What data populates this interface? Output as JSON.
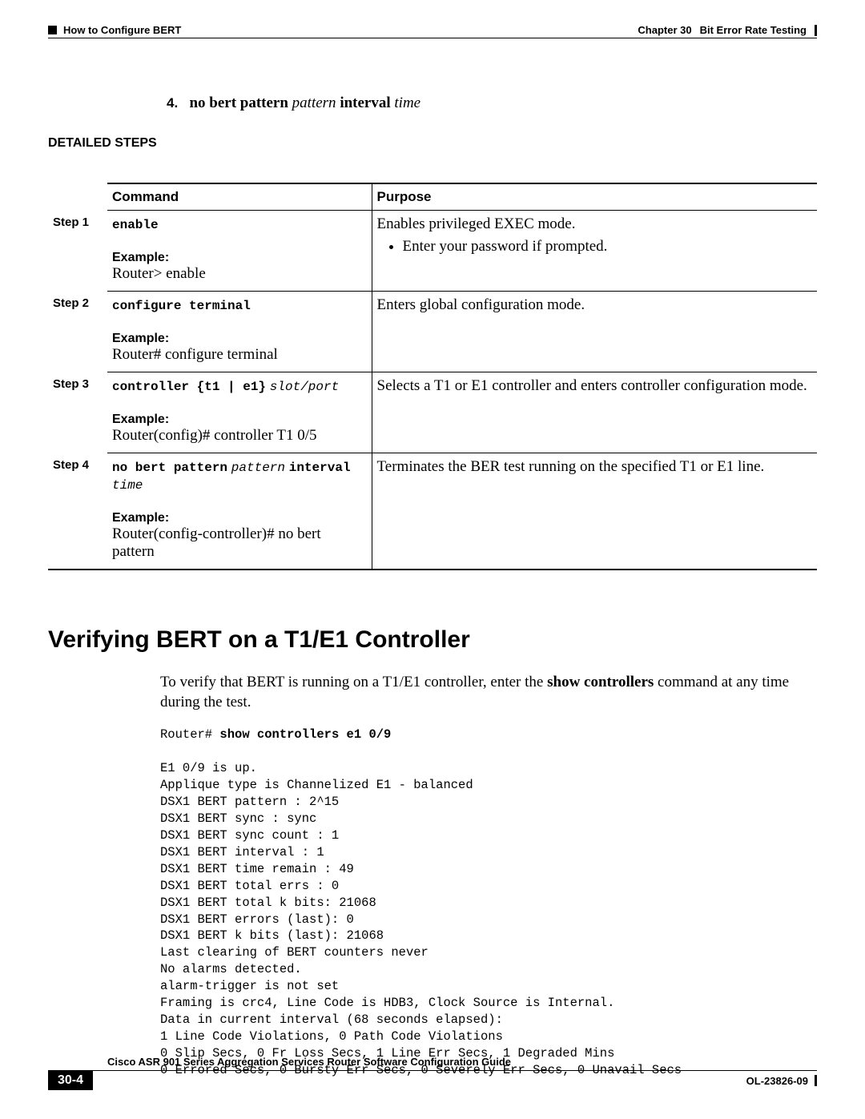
{
  "header": {
    "left": "How to Configure BERT",
    "chapter_label": "Chapter 30",
    "chapter_title": "Bit Error Rate Testing"
  },
  "preStep": {
    "number": "4.",
    "p1": "no bert pattern",
    "p2": "pattern",
    "p3": "interval",
    "p4": "time"
  },
  "detailedSteps": "Detailed Steps",
  "table": {
    "headers": {
      "command": "Command",
      "purpose": "Purpose"
    },
    "rows": [
      {
        "step": "Step 1",
        "cmd_mono": "enable",
        "example_label": "Example:",
        "example_text": "Router> enable",
        "purpose_main": "Enables privileged EXEC mode.",
        "purpose_bullet": "Enter your password if prompted."
      },
      {
        "step": "Step 2",
        "cmd_mono": "configure terminal",
        "example_label": "Example:",
        "example_text": "Router# configure terminal",
        "purpose_main": "Enters global configuration mode."
      },
      {
        "step": "Step 3",
        "cmd_mono": "controller {t1 | e1}",
        "cmd_ital": "slot/port",
        "example_label": "Example:",
        "example_text": "Router(config)# controller T1 0/5",
        "purpose_main": "Selects a T1 or E1 controller and enters controller configuration mode."
      },
      {
        "step": "Step 4",
        "cmd_mono": "no bert pattern",
        "cmd_ital": "pattern",
        "cmd_mono2": "interval",
        "cmd_ital2": "time",
        "example_label": "Example:",
        "example_text": "Router(config-controller)# no bert pattern",
        "purpose_main": "Terminates the BER test running on the specified T1 or E1 line."
      }
    ]
  },
  "section": {
    "heading": "Verifying BERT on a T1/E1 Controller",
    "body_pre": "To verify that BERT is running on a T1/E1 controller, enter the ",
    "body_bold": "show controllers",
    "body_post": " command at any time during the test.",
    "output_prompt": "Router# ",
    "output_cmd": "show controllers e1 0/9",
    "output_body": "E1 0/9 is up.\nApplique type is Channelized E1 - balanced\nDSX1 BERT pattern : 2^15\nDSX1 BERT sync : sync\nDSX1 BERT sync count : 1\nDSX1 BERT interval : 1\nDSX1 BERT time remain : 49\nDSX1 BERT total errs : 0\nDSX1 BERT total k bits: 21068\nDSX1 BERT errors (last): 0\nDSX1 BERT k bits (last): 21068\nLast clearing of BERT counters never\nNo alarms detected.\nalarm-trigger is not set\nFraming is crc4, Line Code is HDB3, Clock Source is Internal.\nData in current interval (68 seconds elapsed):\n1 Line Code Violations, 0 Path Code Violations\n0 Slip Secs, 0 Fr Loss Secs, 1 Line Err Secs, 1 Degraded Mins\n0 Errored Secs, 0 Bursty Err Secs, 0 Severely Err Secs, 0 Unavail Secs"
  },
  "footer": {
    "title": "Cisco ASR 901 Series Aggregation Services Router Software Configuration Guide",
    "page": "30-4",
    "docid": "OL-23826-09"
  }
}
